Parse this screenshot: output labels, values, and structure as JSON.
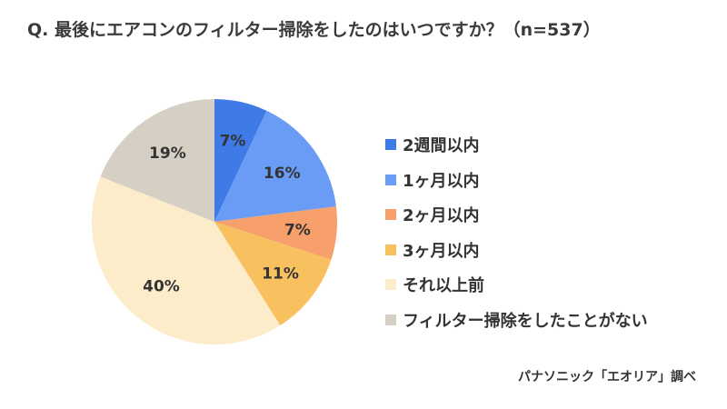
{
  "chart_data": {
    "type": "pie",
    "title": "Q. 最後にエアコンのフィルター掃除をしたのはいつですか？（n=537）",
    "categories": [
      "2週間以内",
      "1ヶ月以内",
      "2ヶ月以内",
      "3ヶ月以内",
      "それ以上前",
      "フィルター掃除をしたことがない"
    ],
    "values": [
      7,
      16,
      7,
      11,
      40,
      19
    ],
    "labels": [
      "7%",
      "16%",
      "7%",
      "11%",
      "40%",
      "19%"
    ],
    "colors": [
      "#3f7be6",
      "#6a9cf5",
      "#f7a06b",
      "#f9c060",
      "#fdecca",
      "#d6cfc4"
    ],
    "start": "top, clockwise",
    "legend_position": "right"
  },
  "source": "パナソニック「エオリア」調べ"
}
